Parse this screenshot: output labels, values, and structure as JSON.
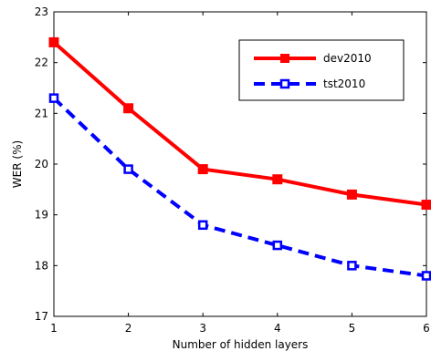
{
  "chart_data": {
    "type": "line",
    "xlabel": "Number of hidden layers",
    "ylabel": "WER (%)",
    "x": [
      1,
      2,
      3,
      4,
      5,
      6
    ],
    "xlim": [
      1,
      6
    ],
    "ylim": [
      17,
      23
    ],
    "xticks": [
      "1",
      "2",
      "3",
      "4",
      "5",
      "6"
    ],
    "yticks": [
      "17",
      "18",
      "19",
      "20",
      "21",
      "22",
      "23"
    ],
    "grid": false,
    "legend_position": "top-right",
    "series": [
      {
        "name": "dev2010",
        "values": [
          22.4,
          21.1,
          19.9,
          19.7,
          19.4,
          19.2
        ],
        "color": "#ff0000",
        "line": "solid",
        "marker": "filled-square"
      },
      {
        "name": "tst2010",
        "values": [
          21.3,
          19.9,
          18.8,
          18.4,
          18.0,
          17.8
        ],
        "color": "#0000ff",
        "line": "dashed",
        "marker": "open-square"
      }
    ]
  }
}
